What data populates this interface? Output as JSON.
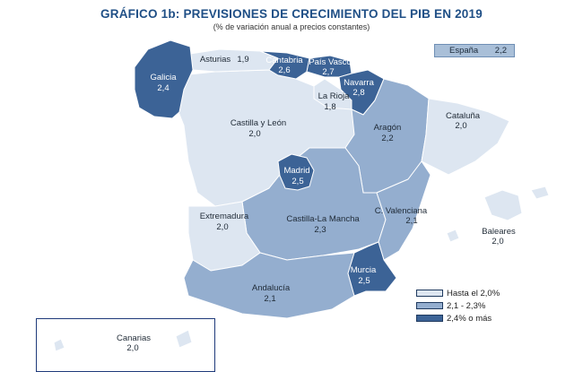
{
  "title": "GRÁFICO 1b: PREVISIONES DE CRECIMIENTO DEL PIB EN 2019",
  "subtitle": "(% de variación anual a precios constantes)",
  "spain": {
    "name": "España",
    "value": "2,2"
  },
  "colors": {
    "low": "#dde6f1",
    "mid": "#94aecf",
    "high": "#3c6396",
    "border": "#ffffff"
  },
  "legend": [
    {
      "label": "Hasta el 2,0%",
      "class": "low"
    },
    {
      "label": "2,1 - 2,3%",
      "class": "mid"
    },
    {
      "label": "2,4% o más",
      "class": "high"
    }
  ],
  "regions": {
    "galicia": {
      "name": "Galicia",
      "value": "2,4",
      "class": "high"
    },
    "asturias": {
      "name": "Asturias",
      "value": "1,9",
      "class": "low"
    },
    "cantabria": {
      "name": "Cantabria",
      "value": "2,6",
      "class": "high"
    },
    "pais_vasco": {
      "name": "País Vasco",
      "value": "2,7",
      "class": "high"
    },
    "navarra": {
      "name": "Navarra",
      "value": "2,8",
      "class": "high"
    },
    "la_rioja": {
      "name": "La Rioja",
      "value": "1,8",
      "class": "low"
    },
    "castilla_leon": {
      "name": "Castilla y León",
      "value": "2,0",
      "class": "low"
    },
    "aragon": {
      "name": "Aragón",
      "value": "2,2",
      "class": "mid"
    },
    "cataluna": {
      "name": "Cataluña",
      "value": "2,0",
      "class": "low"
    },
    "madrid": {
      "name": "Madrid",
      "value": "2,5",
      "class": "high"
    },
    "extremadura": {
      "name": "Extremadura",
      "value": "2,0",
      "class": "low"
    },
    "castilla_la_mancha": {
      "name": "Castilla-La Mancha",
      "value": "2,3",
      "class": "mid"
    },
    "c_valenciana": {
      "name": "C. Valenciana",
      "value": "2,1",
      "class": "mid"
    },
    "baleares": {
      "name": "Baleares",
      "value": "2,0",
      "class": "low"
    },
    "murcia": {
      "name": "Murcia",
      "value": "2,5",
      "class": "high"
    },
    "andalucia": {
      "name": "Andalucía",
      "value": "2,1",
      "class": "mid"
    },
    "canarias": {
      "name": "Canarias",
      "value": "2,0",
      "class": "low"
    }
  }
}
